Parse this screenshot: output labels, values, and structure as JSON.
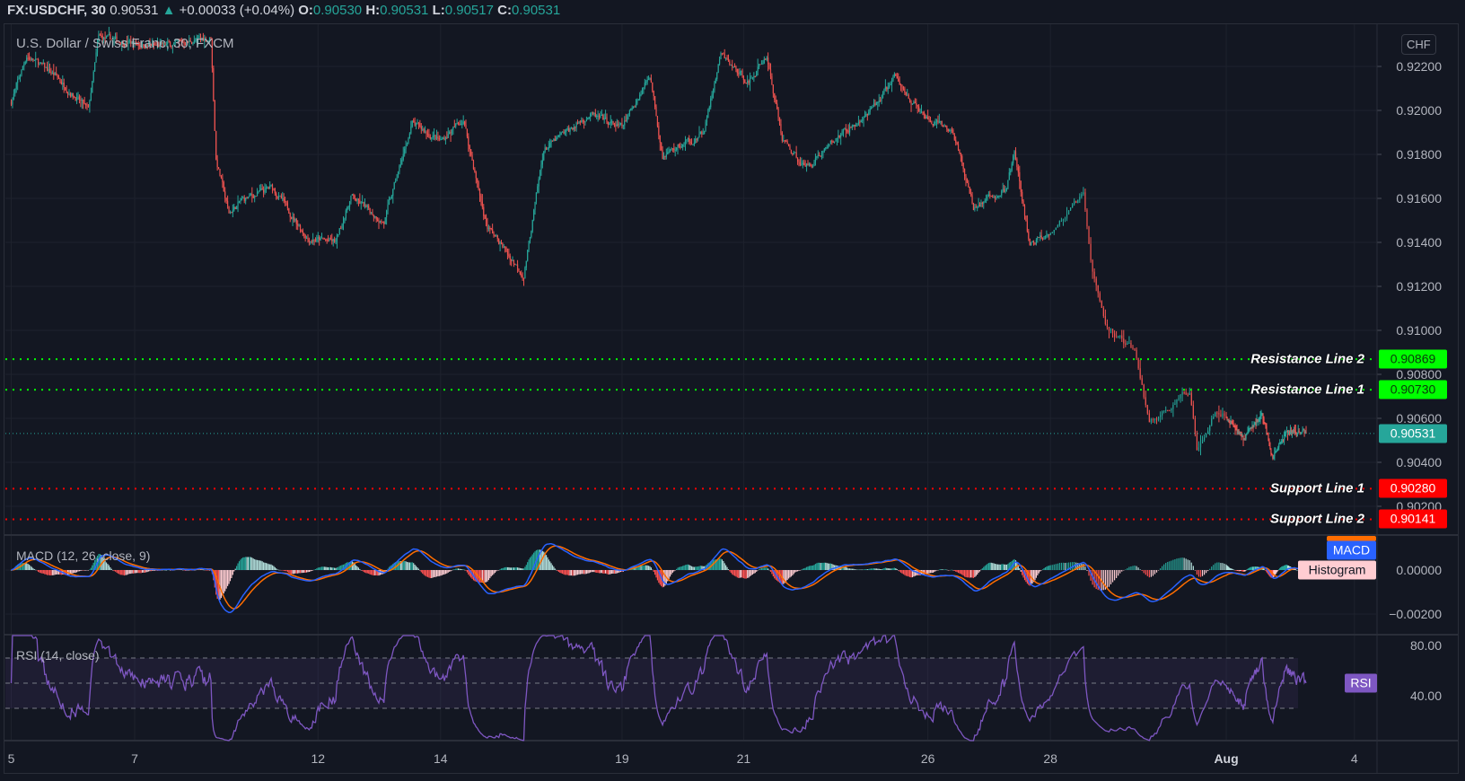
{
  "header": {
    "symbol": "FX:USDCHF, 30",
    "last": "0.90531",
    "change_icon": "triangle-up-icon",
    "change": "+0.00033 (+0.04%)",
    "o_label": "O:",
    "o": "0.90530",
    "h_label": "H:",
    "h": "0.90531",
    "l_label": "L:",
    "l": "0.90517",
    "c_label": "C:",
    "c": "0.90531"
  },
  "main_pane": {
    "title": "U.S. Dollar / Swiss Franc, 30, FXCM",
    "currency": "CHF",
    "price_ticks": [
      "0.92200",
      "0.92000",
      "0.91800",
      "0.91600",
      "0.91400",
      "0.91200",
      "0.91000",
      "0.90800",
      "0.90600",
      "0.90400",
      "0.90200"
    ],
    "current_price": {
      "value": 0.90531,
      "label": "0.90531",
      "color": "#26a69a"
    },
    "lines": [
      {
        "name": "Resistance Line 2",
        "value": 0.90869,
        "label": "0.90869",
        "color": "#00ff00"
      },
      {
        "name": "Resistance Line 1",
        "value": 0.9073,
        "label": "0.90730",
        "color": "#00ff00"
      },
      {
        "name": "Support Line 1",
        "value": 0.9028,
        "label": "0.90280",
        "color": "#ff0000"
      },
      {
        "name": "Support Line 2",
        "value": 0.90141,
        "label": "0.90141",
        "color": "#ff0000"
      }
    ]
  },
  "macd_pane": {
    "title": "MACD (12, 26, close, 9)",
    "ticks": [
      "0.00000",
      "−0.00200"
    ],
    "badge_macd": "MACD",
    "badge_hist": "Histogram",
    "colors": {
      "macd": "#2962ff",
      "signal": "#ff6d00",
      "hist_up": "#26a69a",
      "hist_up_fade": "#b2dfdb",
      "hist_down": "#ff5252",
      "hist_down_fade": "#ffcdd2"
    }
  },
  "rsi_pane": {
    "title": "RSI (14, close)",
    "ticks": [
      "80.00",
      "40.00"
    ],
    "badge": "RSI",
    "bands": [
      70,
      50,
      30
    ],
    "color": "#7e57c2"
  },
  "x_ticks": [
    {
      "label": "5",
      "date": "Jul 5"
    },
    {
      "label": "7",
      "date": "Jul 7"
    },
    {
      "label": "12",
      "date": "Jul 12"
    },
    {
      "label": "14",
      "date": "Jul 14"
    },
    {
      "label": "19",
      "date": "Jul 19"
    },
    {
      "label": "21",
      "date": "Jul 21"
    },
    {
      "label": "26",
      "date": "Jul 26"
    },
    {
      "label": "28",
      "date": "Jul 28"
    },
    {
      "label": "Aug",
      "date": "Aug 1",
      "month": true
    },
    {
      "label": "4",
      "date": "Aug 4"
    }
  ],
  "chart_data": {
    "type": "candlestick",
    "interval": "30",
    "up_color": "#26a69a",
    "down_color": "#ef5350",
    "ylim": [
      0.9007,
      0.924
    ],
    "grid": true,
    "close_keypoints": [
      [
        "Jul 5",
        0,
        0.9204
      ],
      [
        "Jul 5",
        6,
        0.9225
      ],
      [
        "Jul 5",
        17,
        0.9216
      ],
      [
        "Jul 6",
        6,
        0.92
      ],
      [
        "Jul 6",
        10,
        0.9233
      ],
      [
        "Jul 7",
        9,
        0.9229
      ],
      [
        "Jul 10",
        6,
        0.9233
      ],
      [
        "Jul 10",
        8,
        0.9178
      ],
      [
        "Jul 10",
        13,
        0.9153
      ],
      [
        "Jul 10",
        18,
        0.9159
      ],
      [
        "Jul 11",
        6,
        0.9165
      ],
      [
        "Jul 11",
        20,
        0.9142
      ],
      [
        "Jul 12",
        7,
        0.914
      ],
      [
        "Jul 12",
        13,
        0.9161
      ],
      [
        "Jul 13",
        2,
        0.9149
      ],
      [
        "Jul 13",
        13,
        0.9194
      ],
      [
        "Jul 14",
        0,
        0.9186
      ],
      [
        "Jul 14",
        9,
        0.9196
      ],
      [
        "Jul 14",
        18,
        0.9148
      ],
      [
        "Jul 17",
        9,
        0.9125
      ],
      [
        "Jul 17",
        17,
        0.9182
      ],
      [
        "Jul 18",
        11,
        0.9198
      ],
      [
        "Jul 19",
        0,
        0.9192
      ],
      [
        "Jul 19",
        11,
        0.92166
      ],
      [
        "Jul 19",
        16,
        0.918
      ],
      [
        "Jul 20",
        8,
        0.9189
      ],
      [
        "Jul 20",
        15,
        0.9225
      ],
      [
        "Jul 21",
        2,
        0.9213
      ],
      [
        "Jul 21",
        9,
        0.9225
      ],
      [
        "Jul 21",
        15,
        0.9187
      ],
      [
        "Jul 24",
        0,
        0.9174
      ],
      [
        "Jul 24",
        14,
        0.9189
      ],
      [
        "Jul 25",
        1,
        0.9198
      ],
      [
        "Jul 25",
        11,
        0.9215
      ],
      [
        "Jul 25",
        23,
        0.9196
      ],
      [
        "Jul 26",
        10,
        0.919
      ],
      [
        "Jul 26",
        18,
        0.9156
      ],
      [
        "Jul 27",
        7,
        0.9164
      ],
      [
        "Jul 27",
        10,
        0.9181
      ],
      [
        "Jul 27",
        16,
        0.9138
      ],
      [
        "Jul 28",
        2,
        0.9148
      ],
      [
        "Jul 28",
        9,
        0.9161
      ],
      [
        "Jul 28",
        11,
        0.9131
      ],
      [
        "Jul 28",
        15,
        0.9102
      ],
      [
        "Jul 28",
        23,
        0.9091
      ],
      [
        "Jul 31",
        3,
        0.9058
      ],
      [
        "Jul 31",
        14,
        0.9072
      ],
      [
        "Jul 31",
        16,
        0.9047
      ],
      [
        "Jul 31",
        21,
        0.9064
      ],
      [
        "Aug 1",
        10,
        0.9051
      ],
      [
        "Aug 1",
        20,
        0.9062
      ],
      [
        "Aug 2",
        2,
        0.9042
      ],
      [
        "Aug 2",
        10,
        0.9054
      ],
      [
        "Aug 2",
        21,
        0.90531
      ]
    ]
  }
}
